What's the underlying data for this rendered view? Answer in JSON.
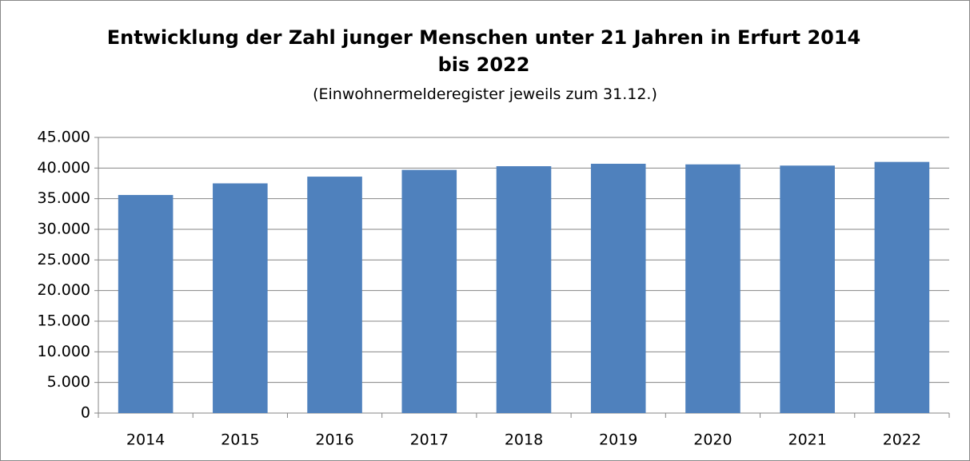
{
  "chart_data": {
    "type": "bar",
    "title": "Entwicklung der Zahl junger Menschen unter 21 Jahren in Erfurt 2014 bis 2022",
    "subtitle": "(Einwohnermelderegister jeweils zum 31.12.)",
    "categories": [
      "2014",
      "2015",
      "2016",
      "2017",
      "2018",
      "2019",
      "2020",
      "2021",
      "2022"
    ],
    "values": [
      35600,
      37500,
      38600,
      39700,
      40300,
      40700,
      40600,
      40400,
      41000
    ],
    "color": "#4f81bd",
    "ylim": [
      0,
      45000
    ],
    "yticks": [
      0,
      {
        "value": 5000,
        "label": "5.000"
      },
      {
        "value": 10000,
        "label": "10.000"
      },
      {
        "value": 15000,
        "label": "15.000"
      },
      {
        "value": 20000,
        "label": "20.000"
      },
      {
        "value": 25000,
        "label": "25.000"
      },
      {
        "value": 30000,
        "label": "30.000"
      },
      {
        "value": 35000,
        "label": "35.000"
      },
      {
        "value": 40000,
        "label": "40.000"
      },
      {
        "value": 45000,
        "label": "45.000"
      }
    ],
    "grid": true
  }
}
